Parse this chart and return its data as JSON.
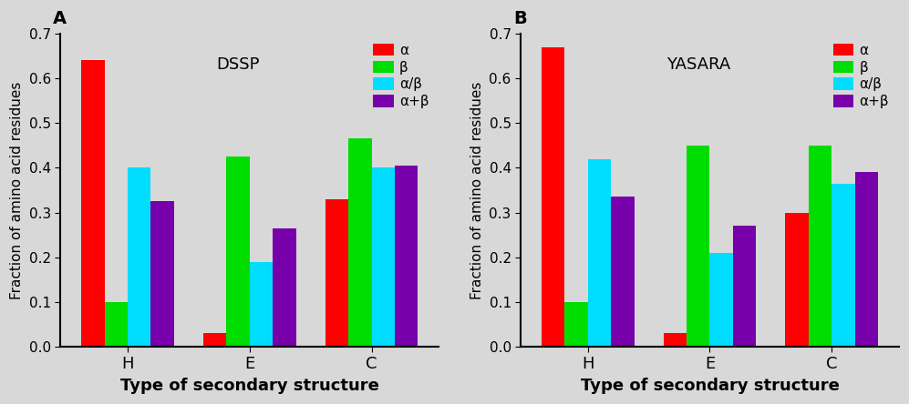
{
  "panel_A": {
    "title": "DSSP",
    "categories": [
      "H",
      "E",
      "C"
    ],
    "alpha": [
      0.64,
      0.03,
      0.33
    ],
    "beta": [
      0.1,
      0.425,
      0.465
    ],
    "alpha_beta": [
      0.4,
      0.19,
      0.4
    ],
    "alpha_plus_beta": [
      0.325,
      0.265,
      0.405
    ]
  },
  "panel_B": {
    "title": "YASARA",
    "categories": [
      "H",
      "E",
      "C"
    ],
    "alpha": [
      0.67,
      0.03,
      0.3
    ],
    "beta": [
      0.1,
      0.45,
      0.45
    ],
    "alpha_beta": [
      0.42,
      0.21,
      0.365
    ],
    "alpha_plus_beta": [
      0.335,
      0.27,
      0.39
    ]
  },
  "colors": {
    "alpha": "#ff0000",
    "beta": "#00dd00",
    "alpha_beta": "#00ddff",
    "alpha_plus_beta": "#7700aa"
  },
  "legend_labels": [
    "α",
    "β",
    "α/β",
    "α+β"
  ],
  "ylabel": "Fraction of amino acid residues",
  "xlabel": "Type of secondary structure",
  "ylim": [
    0,
    0.7
  ],
  "yticks": [
    0.0,
    0.1,
    0.2,
    0.3,
    0.4,
    0.5,
    0.6,
    0.7
  ],
  "panel_labels": [
    "A",
    "B"
  ],
  "bar_width": 0.19,
  "bg_color": "#d8d8d8",
  "fig_bg_color": "#d8d8d8"
}
